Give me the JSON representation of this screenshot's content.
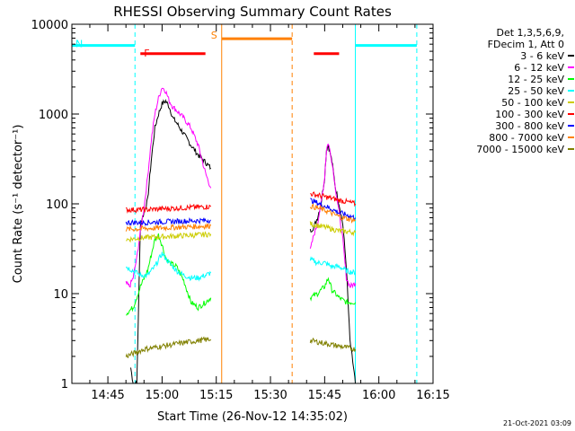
{
  "chart_data": {
    "type": "line",
    "title": "RHESSI Observing Summary Count Rates",
    "xlabel": "Start Time (26-Nov-12 14:35:02)",
    "ylabel": "Count Rate (s⁻¹ detector⁻¹)",
    "y_scale": "log",
    "ylim": [
      1,
      10000
    ],
    "xlim": [
      "14:35:02",
      "16:15:00"
    ],
    "x_ticks": [
      "14:45",
      "15:00",
      "15:15",
      "15:30",
      "15:45",
      "16:00",
      "16:15"
    ],
    "y_ticks": [
      "1",
      "10",
      "100",
      "1000",
      "10000"
    ],
    "legend_header": [
      "Det 1,3,5,6,9,",
      "FDecim 1, Att 0"
    ],
    "legend_position": "top-right",
    "series": [
      {
        "name": "3 - 6 keV",
        "color": "#000000",
        "segments": [
          {
            "x": [
              "14:51:20",
              "14:52:00",
              "14:53:00",
              "14:54:00",
              "14:55:00",
              "14:56:00",
              "14:57:00",
              "14:58:00",
              "14:59:00",
              "15:00:00",
              "15:01:00",
              "15:02:00",
              "15:03:00",
              "15:04:00",
              "15:06:00",
              "15:08:00",
              "15:10:00",
              "15:12:00",
              "15:13:30"
            ],
            "y": [
              1.5,
              1.0,
              1.0,
              60,
              80,
              110,
              300,
              700,
              1000,
              1300,
              1400,
              1200,
              900,
              800,
              600,
              450,
              350,
              290,
              250
            ]
          },
          {
            "x": [
              "15:41:00",
              "15:42:00",
              "15:43:00",
              "15:44:00",
              "15:45:00",
              "15:45:30",
              "15:46:00",
              "15:47:00",
              "15:48:00",
              "15:49:00",
              "15:50:00",
              "15:51:00",
              "15:52:00",
              "15:53:00",
              "15:53:30"
            ],
            "y": [
              50,
              55,
              70,
              100,
              200,
              400,
              450,
              300,
              150,
              100,
              60,
              20,
              3,
              1.5,
              1.0
            ]
          }
        ]
      },
      {
        "name": "6 - 12 keV",
        "color": "#ff00ff",
        "segments": [
          {
            "x": [
              "14:50:00",
              "14:51:00",
              "14:52:00",
              "14:53:00",
              "14:54:00",
              "14:55:00",
              "14:56:00",
              "14:57:00",
              "14:58:00",
              "14:59:00",
              "15:00:00",
              "15:01:00",
              "15:02:00",
              "15:03:00",
              "15:04:00",
              "15:06:00",
              "15:08:00",
              "15:10:00",
              "15:12:00",
              "15:13:30"
            ],
            "y": [
              13,
              12,
              15,
              25,
              50,
              90,
              200,
              500,
              1000,
              1500,
              2000,
              1800,
              1400,
              1200,
              1100,
              900,
              700,
              450,
              220,
              150
            ]
          },
          {
            "x": [
              "15:41:00",
              "15:42:00",
              "15:43:00",
              "15:44:00",
              "15:45:00",
              "15:45:30",
              "15:46:00",
              "15:47:00",
              "15:48:00",
              "15:49:00",
              "15:50:00",
              "15:51:00",
              "15:52:00",
              "15:53:30"
            ],
            "y": [
              30,
              45,
              60,
              100,
              200,
              400,
              480,
              300,
              150,
              80,
              40,
              15,
              12,
              13
            ]
          }
        ]
      },
      {
        "name": "12 - 25 keV",
        "color": "#00ff00",
        "segments": [
          {
            "x": [
              "14:50:00",
              "14:52:00",
              "14:54:00",
              "14:56:00",
              "14:58:00",
              "14:59:00",
              "15:00:00",
              "15:01:00",
              "15:02:00",
              "15:04:00",
              "15:06:00",
              "15:08:00",
              "15:10:00",
              "15:12:00",
              "15:13:30"
            ],
            "y": [
              6,
              7,
              12,
              18,
              40,
              45,
              35,
              25,
              22,
              20,
              14,
              8,
              7,
              8,
              9
            ]
          },
          {
            "x": [
              "15:41:00",
              "15:43:00",
              "15:45:00",
              "15:46:00",
              "15:47:00",
              "15:49:00",
              "15:51:00",
              "15:53:30"
            ],
            "y": [
              9,
              10,
              12,
              15,
              11,
              9,
              8,
              8
            ]
          }
        ]
      },
      {
        "name": "25 - 50 keV",
        "color": "#00ffff",
        "segments": [
          {
            "x": [
              "14:50:00",
              "14:52:00",
              "14:54:00",
              "14:56:00",
              "14:58:00",
              "15:00:00",
              "15:02:00",
              "15:04:00",
              "15:06:00",
              "15:08:00",
              "15:10:00",
              "15:12:00",
              "15:13:30"
            ],
            "y": [
              20,
              18,
              16,
              16,
              20,
              28,
              22,
              18,
              16,
              15,
              15,
              16,
              17
            ]
          },
          {
            "x": [
              "15:41:00",
              "15:43:00",
              "15:45:00",
              "15:47:00",
              "15:49:00",
              "15:51:00",
              "15:53:30"
            ],
            "y": [
              24,
              22,
              22,
              20,
              20,
              18,
              17
            ]
          }
        ]
      },
      {
        "name": "50 - 100 keV",
        "color": "#cccc00",
        "segments": [
          {
            "x": [
              "14:50:00",
              "14:55:00",
              "15:00:00",
              "15:05:00",
              "15:10:00",
              "15:13:30"
            ],
            "y": [
              40,
              42,
              43,
              44,
              45,
              46
            ]
          },
          {
            "x": [
              "15:41:00",
              "15:45:00",
              "15:49:00",
              "15:53:30"
            ],
            "y": [
              60,
              55,
              50,
              48
            ]
          }
        ]
      },
      {
        "name": "100 - 300 keV",
        "color": "#ff0000",
        "segments": [
          {
            "x": [
              "14:50:00",
              "14:55:00",
              "15:00:00",
              "15:05:00",
              "15:10:00",
              "15:13:30"
            ],
            "y": [
              86,
              86,
              88,
              90,
              92,
              93
            ]
          },
          {
            "x": [
              "15:41:00",
              "15:45:00",
              "15:49:00",
              "15:53:30"
            ],
            "y": [
              130,
              120,
              110,
              100
            ]
          }
        ]
      },
      {
        "name": "300 - 800 keV",
        "color": "#0000ff",
        "segments": [
          {
            "x": [
              "14:50:00",
              "14:55:00",
              "15:00:00",
              "15:05:00",
              "15:10:00",
              "15:13:30"
            ],
            "y": [
              62,
              62,
              63,
              64,
              65,
              66
            ]
          },
          {
            "x": [
              "15:41:00",
              "15:45:00",
              "15:49:00",
              "15:53:30"
            ],
            "y": [
              110,
              95,
              80,
              70
            ]
          }
        ]
      },
      {
        "name": "800 - 7000 keV",
        "color": "#ff8000",
        "segments": [
          {
            "x": [
              "14:50:00",
              "14:55:00",
              "15:00:00",
              "15:05:00",
              "15:10:00",
              "15:13:30"
            ],
            "y": [
              52,
              53,
              54,
              55,
              56,
              57
            ]
          },
          {
            "x": [
              "15:41:00",
              "15:45:00",
              "15:49:00",
              "15:53:30"
            ],
            "y": [
              95,
              85,
              72,
              65
            ]
          }
        ]
      },
      {
        "name": "7000 - 15000 keV",
        "color": "#808000",
        "segments": [
          {
            "x": [
              "14:50:00",
              "14:55:00",
              "15:00:00",
              "15:05:00",
              "15:10:00",
              "15:13:30"
            ],
            "y": [
              2.0,
              2.4,
              2.6,
              2.8,
              3.0,
              3.1
            ]
          },
          {
            "x": [
              "15:41:00",
              "15:45:00",
              "15:49:00",
              "15:53:30"
            ],
            "y": [
              3.0,
              2.8,
              2.6,
              2.4
            ]
          }
        ]
      }
    ],
    "state_bars": [
      {
        "label": "N",
        "color": "#00ffff",
        "intervals": [
          [
            "14:35:02",
            "14:52:30"
          ],
          [
            "15:53:30",
            "16:10:30"
          ]
        ],
        "y": 5800
      },
      {
        "label": "F",
        "color": "#ff0000",
        "intervals": [
          [
            "14:54:00",
            "15:12:00"
          ],
          [
            "15:42:00",
            "15:49:00"
          ]
        ],
        "y": 4700
      },
      {
        "label": "S",
        "color": "#ff8000",
        "intervals": [
          [
            "15:16:30",
            "15:36:00"
          ]
        ],
        "y": 6900
      }
    ],
    "vertical_markers": [
      {
        "t": "14:35:02",
        "color": "#00ffff",
        "style": "solid"
      },
      {
        "t": "14:52:30",
        "color": "#00ffff",
        "style": "dashed"
      },
      {
        "t": "15:16:30",
        "color": "#ff8000",
        "style": "solid"
      },
      {
        "t": "15:36:00",
        "color": "#ff8000",
        "style": "dashed"
      },
      {
        "t": "15:53:30",
        "color": "#00ffff",
        "style": "solid"
      },
      {
        "t": "16:10:30",
        "color": "#00ffff",
        "style": "dashed"
      }
    ],
    "footer": "21-Oct-2021 03:09"
  }
}
